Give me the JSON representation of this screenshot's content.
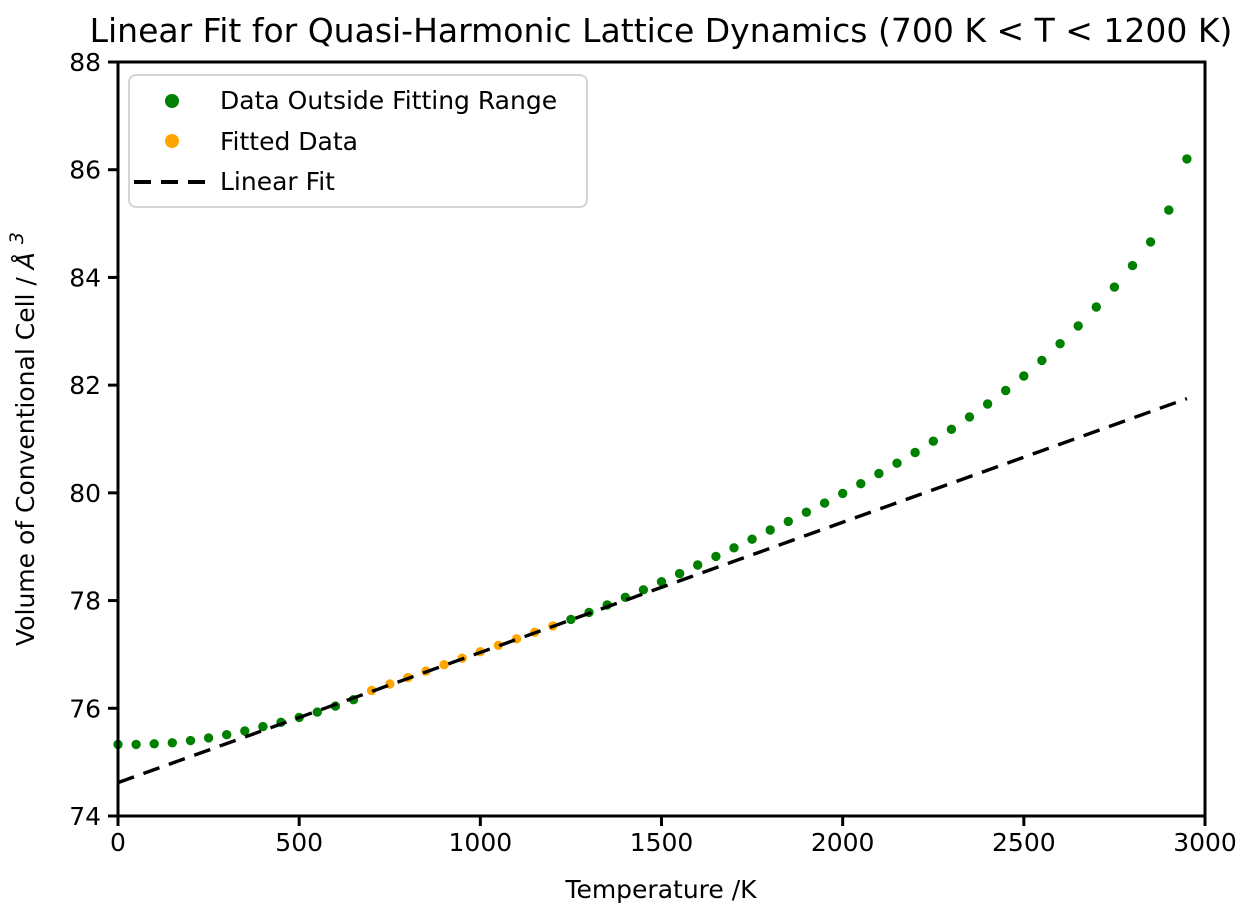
{
  "chart_data": {
    "type": "scatter",
    "title": "Linear Fit for Quasi-Harmonic Lattice Dynamics (700 K < T < 1200 K)",
    "xlabel": "Temperature /K",
    "ylabel_prefix": "Volume of Conventional Cell /",
    "ylabel_unit": "Å",
    "ylabel_exponent": "3",
    "xlim": [
      0,
      3000
    ],
    "ylim": [
      74,
      88
    ],
    "xticks": [
      0,
      500,
      1000,
      1500,
      2000,
      2500,
      3000
    ],
    "yticks": [
      74,
      76,
      78,
      80,
      82,
      84,
      86,
      88
    ],
    "grid": false,
    "background_color": "#ffffff",
    "axis_color": "#000000",
    "legend": {
      "position": "upper left",
      "entries": [
        {
          "label": "Data Outside Fitting Range",
          "marker": "dot",
          "color": "#008000"
        },
        {
          "label": "Fitted Data",
          "marker": "dot",
          "color": "#FFA500"
        },
        {
          "label": "Linear Fit",
          "marker": "dash",
          "color": "#000000"
        }
      ]
    },
    "series": [
      {
        "name": "Data Outside Fitting Range",
        "type": "scatter",
        "color": "#008000",
        "x": [
          0,
          50,
          100,
          150,
          200,
          250,
          300,
          350,
          400,
          450,
          500,
          550,
          600,
          650,
          1250,
          1300,
          1350,
          1400,
          1450,
          1500,
          1550,
          1600,
          1650,
          1700,
          1750,
          1800,
          1850,
          1900,
          1950,
          2000,
          2050,
          2100,
          2150,
          2200,
          2250,
          2300,
          2350,
          2400,
          2450,
          2500,
          2550,
          2600,
          2650,
          2700,
          2750,
          2800,
          2850,
          2900,
          2950
        ],
        "y": [
          75.33,
          75.33,
          75.34,
          75.36,
          75.4,
          75.45,
          75.51,
          75.58,
          75.66,
          75.74,
          75.83,
          75.93,
          76.04,
          76.16,
          77.65,
          77.78,
          77.92,
          78.06,
          78.2,
          78.35,
          78.5,
          78.66,
          78.82,
          78.98,
          79.14,
          79.31,
          79.47,
          79.64,
          79.81,
          79.99,
          80.17,
          80.36,
          80.55,
          80.75,
          80.96,
          81.18,
          81.41,
          81.65,
          81.9,
          82.17,
          82.46,
          82.77,
          83.1,
          83.45,
          83.82,
          84.22,
          84.66,
          85.25,
          86.2
        ]
      },
      {
        "name": "Fitted Data",
        "type": "scatter",
        "color": "#FFA500",
        "x": [
          700,
          750,
          800,
          850,
          900,
          950,
          1000,
          1050,
          1100,
          1150,
          1200
        ],
        "y": [
          76.33,
          76.45,
          76.57,
          76.69,
          76.81,
          76.93,
          77.05,
          77.17,
          77.29,
          77.41,
          77.53
        ]
      },
      {
        "name": "Linear Fit",
        "type": "line",
        "style": "dashed",
        "color": "#000000",
        "x": [
          0,
          2950
        ],
        "y": [
          74.62,
          81.75
        ]
      }
    ]
  }
}
